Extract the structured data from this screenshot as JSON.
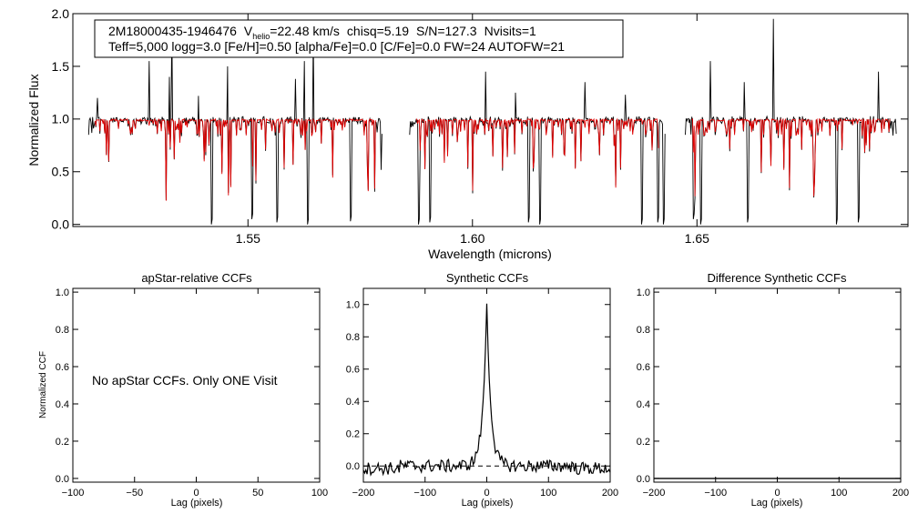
{
  "colors": {
    "observed": "#000000",
    "model": "#e00000",
    "axis": "#000000",
    "zero_line": "#000000"
  },
  "chart_data": [
    {
      "type": "line",
      "id": "spectrum",
      "xlabel": "Wavelength (microns)",
      "ylabel": "Normalized Flux",
      "xlim": [
        1.511,
        1.697
      ],
      "ylim": [
        -0.02,
        2.0
      ],
      "xticks": [
        1.55,
        1.6,
        1.65
      ],
      "xtick_labels": [
        "1.55",
        "1.60",
        "1.65"
      ],
      "yticks": [
        0.0,
        0.5,
        1.0,
        1.5,
        2.0
      ],
      "ytick_labels": [
        "0.0",
        "0.5",
        "1.0",
        "1.5",
        "2.0"
      ],
      "chips": [
        [
          1.5145,
          1.58
        ],
        [
          1.586,
          1.643
        ],
        [
          1.6474,
          1.6945
        ]
      ],
      "series": [
        {
          "name": "observed",
          "color": "#000000"
        },
        {
          "name": "model",
          "color": "#e00000"
        }
      ],
      "emission_spikes": [
        [
          1.5165,
          1.2
        ],
        [
          1.528,
          1.55
        ],
        [
          1.5325,
          1.4
        ],
        [
          1.533,
          1.9
        ],
        [
          1.539,
          1.22
        ],
        [
          1.542,
          1.35
        ],
        [
          1.5455,
          1.5
        ],
        [
          1.5605,
          1.38
        ],
        [
          1.5625,
          1.55
        ],
        [
          1.5645,
          1.8
        ],
        [
          1.603,
          1.45
        ],
        [
          1.6095,
          1.25
        ],
        [
          1.625,
          1.35
        ],
        [
          1.634,
          1.23
        ],
        [
          1.653,
          1.55
        ],
        [
          1.6605,
          1.35
        ],
        [
          1.667,
          1.95
        ],
        [
          1.6905,
          1.45
        ]
      ],
      "deep_lines": [
        [
          1.5418,
          0.0
        ],
        [
          1.5508,
          0.05
        ],
        [
          1.5565,
          0.02
        ],
        [
          1.5632,
          0.0
        ],
        [
          1.5728,
          0.03
        ],
        [
          1.588,
          0.0
        ],
        [
          1.5905,
          0.02
        ],
        [
          1.6125,
          0.02
        ],
        [
          1.615,
          0.0
        ],
        [
          1.6377,
          0.0
        ],
        [
          1.6412,
          0.02
        ],
        [
          1.6425,
          0.0
        ],
        [
          1.6492,
          0.05
        ],
        [
          1.6508,
          0.0
        ],
        [
          1.6612,
          0.02
        ],
        [
          1.681,
          0.0
        ],
        [
          1.686,
          0.02
        ]
      ],
      "legend": {
        "object_id": "2M18000435-1946476",
        "v_symbol": "V",
        "v_subscript": "helio",
        "v_value": "=22.48 km/s",
        "chisq": "chisq=5.19",
        "snr": "S/N=127.3",
        "nvisits": "Nvisits=1",
        "params": "Teff=5,000 logg=3.0 [Fe/H]=0.50 [alpha/Fe]=0.0 [C/Fe]=0.0 FW=24 AUTOFW=21"
      }
    },
    {
      "type": "line",
      "id": "apstar_ccf",
      "title": "apStar-relative CCFs",
      "xlabel": "Lag (pixels)",
      "ylabel": "Normalized CCF",
      "xlim": [
        -100,
        100
      ],
      "ylim": [
        -0.02,
        1.02
      ],
      "xticks": [
        -100,
        -50,
        0,
        50,
        100
      ],
      "xtick_labels": [
        "−100",
        "−50",
        "0",
        "50",
        "100"
      ],
      "yticks": [
        0.0,
        0.2,
        0.4,
        0.6,
        0.8,
        1.0
      ],
      "ytick_labels": [
        "0.0",
        "0.2",
        "0.4",
        "0.6",
        "0.8",
        "1.0"
      ],
      "annotation": "No apStar CCFs.  Only ONE Visit",
      "series": []
    },
    {
      "type": "line",
      "id": "synthetic_ccf",
      "title": "Synthetic CCFs",
      "xlabel": "Lag (pixels)",
      "xlim": [
        -200,
        200
      ],
      "ylim": [
        -0.1,
        1.1
      ],
      "xticks": [
        -200,
        -100,
        0,
        100,
        200
      ],
      "xtick_labels": [
        "−200",
        "−100",
        "0",
        "100",
        "200"
      ],
      "yticks": [
        0.0,
        0.2,
        0.4,
        0.6,
        0.8,
        1.0
      ],
      "ytick_labels": [
        "0.0",
        "0.2",
        "0.4",
        "0.6",
        "0.8",
        "1.0"
      ],
      "zero_line": 0.0,
      "series": [
        {
          "name": "ccf",
          "peak_lag": 0,
          "peak_value": 1.0,
          "noise_level": 0.04
        }
      ]
    },
    {
      "type": "line",
      "id": "difference_ccf",
      "title": "Difference Synthetic CCFs",
      "xlabel": "Lag (pixels)",
      "xlim": [
        -200,
        200
      ],
      "ylim": [
        -0.02,
        1.02
      ],
      "xticks": [
        -200,
        -100,
        0,
        100,
        200
      ],
      "xtick_labels": [
        "−200",
        "−100",
        "0",
        "100",
        "200"
      ],
      "yticks": [
        0.0,
        0.2,
        0.4,
        0.6,
        0.8,
        1.0
      ],
      "ytick_labels": [
        "0.0",
        "0.2",
        "0.4",
        "0.6",
        "0.8",
        "1.0"
      ],
      "series": [
        {
          "name": "difference",
          "constant": 0.0
        }
      ]
    }
  ]
}
